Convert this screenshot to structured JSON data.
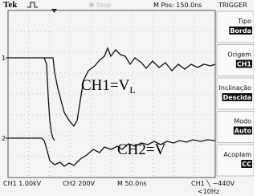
{
  "header": {
    "brand": "Tek",
    "status": "Stop",
    "position": "M Pos: 150.0ns",
    "menu_title": "TRIGGER"
  },
  "markers": {
    "ch1": "1",
    "ch2": "2"
  },
  "annotations": [
    {
      "text": "CH1=V",
      "subscript": "L"
    },
    {
      "text": "CH2=V"
    }
  ],
  "menu": [
    {
      "label": "Tipo",
      "value": "Borda"
    },
    {
      "label": "Origem",
      "value": "CH1"
    },
    {
      "label": "Inclinação",
      "value": "Descida"
    },
    {
      "label": "Modo",
      "value": "Auto"
    },
    {
      "label": "Acoplam",
      "value": "CC"
    }
  ],
  "footer": {
    "ch1": "CH1  1.00kV",
    "ch2": "CH2  200V",
    "time": "M 50.0ns",
    "trigger": "CH1 ╲ −440V",
    "frequency": "<10Hz"
  }
}
